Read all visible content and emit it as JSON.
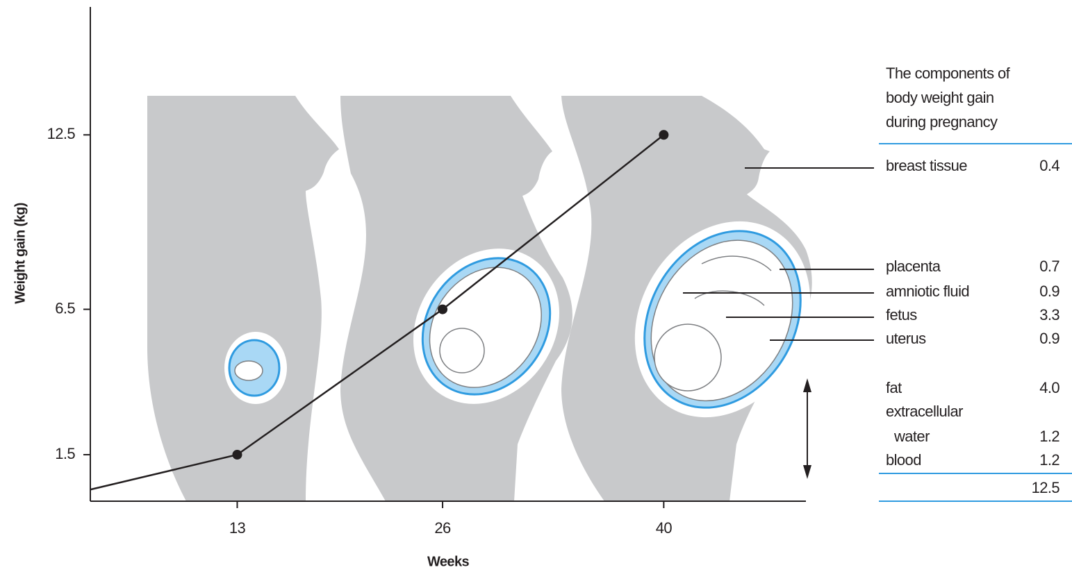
{
  "chart_data": {
    "type": "line",
    "x_label": "Weeks",
    "y_label": "Weight gain (kg)",
    "x": [
      3.7,
      13,
      26,
      40
    ],
    "series": [
      {
        "color": "#231f20",
        "values": [
          0.3,
          1.5,
          6.5,
          12.5
        ]
      }
    ],
    "xlim": [
      3.7,
      49
    ],
    "ylim": [
      -0.1,
      16.9
    ],
    "xticks": [
      13,
      26,
      40
    ],
    "yticks": [
      1.5,
      6.5,
      12.5
    ]
  },
  "table": {
    "title": [
      "The components of",
      "body weight gain",
      "during pregnancy"
    ],
    "rows": [
      {
        "label": [
          "breast tissue"
        ],
        "value": "0.4"
      },
      {
        "label": [
          "placenta"
        ],
        "value": "0.7"
      },
      {
        "label": [
          "amniotic fluid"
        ],
        "value": "0.9"
      },
      {
        "label": [
          "fetus"
        ],
        "value": "3.3"
      },
      {
        "label": [
          "uterus"
        ],
        "value": "0.9"
      },
      {
        "label": [
          "fat"
        ],
        "value": "4.0"
      },
      {
        "label": [
          "extracellular",
          "water"
        ],
        "value": "1.2"
      },
      {
        "label": [
          "blood"
        ],
        "value": "1.2"
      }
    ],
    "total": "12.5"
  }
}
